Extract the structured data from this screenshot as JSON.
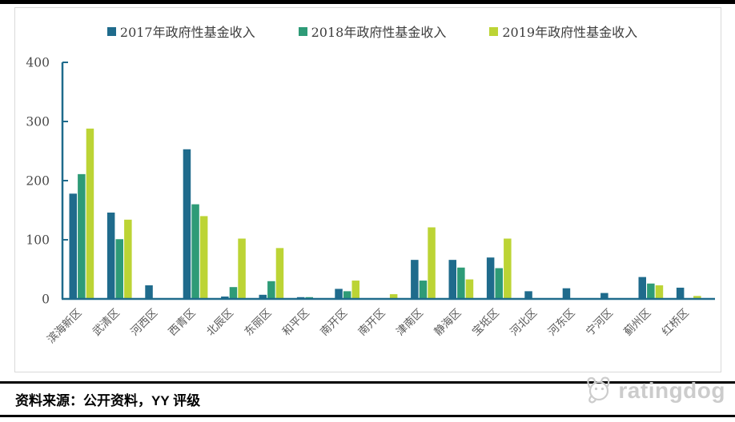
{
  "legend": {
    "items": [
      {
        "label": "2017年政府性基金收入",
        "color": "#1f6b8c"
      },
      {
        "label": "2018年政府性基金收入",
        "color": "#2e9b77"
      },
      {
        "label": "2019年政府性基金收入",
        "color": "#bcd435"
      }
    ]
  },
  "chart_data": {
    "type": "bar",
    "title": "",
    "xlabel": "",
    "ylabel": "",
    "categories": [
      "滨海新区",
      "武清区",
      "河西区",
      "西青区",
      "北辰区",
      "东丽区",
      "和平区",
      "南开区",
      "南开区",
      "津南区",
      "静海区",
      "宝坻区",
      "河北区",
      "河东区",
      "宁河区",
      "蓟州区",
      "红桥区"
    ],
    "series": [
      {
        "name": "2017年政府性基金收入",
        "color": "#1f6b8c",
        "values": [
          178,
          146,
          23,
          253,
          4,
          7,
          3,
          17,
          0,
          66,
          66,
          70,
          13,
          18,
          10,
          37,
          19
        ]
      },
      {
        "name": "2018年政府性基金收入",
        "color": "#2e9b77",
        "values": [
          211,
          101,
          0,
          160,
          20,
          30,
          3,
          13,
          0,
          31,
          53,
          52,
          0,
          0,
          0,
          26,
          0
        ]
      },
      {
        "name": "2019年政府性基金收入",
        "color": "#bcd435",
        "values": [
          288,
          134,
          0,
          140,
          102,
          86,
          0,
          31,
          8,
          121,
          33,
          102,
          0,
          0,
          0,
          23,
          5
        ]
      }
    ],
    "ylim": [
      0,
      400
    ],
    "yticks": [
      0,
      100,
      200,
      300,
      400
    ],
    "grid": false,
    "legend_position": "top",
    "axis_color": "#1f6b8c",
    "tick_label_color": "#4a4a4a",
    "category_label_color": "#595959"
  },
  "footer": {
    "source_text": "资料来源：公开资料，YY 评级",
    "logo_text": "ratingdog"
  }
}
